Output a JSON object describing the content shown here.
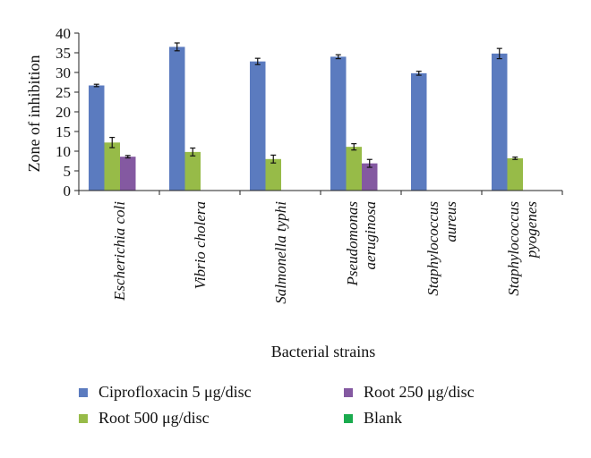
{
  "chart_data": {
    "type": "bar",
    "ylabel": "Zone of inhibition",
    "xlabel": "Bacterial strains",
    "ylim": [
      0,
      40
    ],
    "yticks": [
      "0",
      "5",
      "10",
      "15",
      "20",
      "25",
      "30",
      "35",
      "40"
    ],
    "categories": [
      [
        "Escherichia coli"
      ],
      [
        "Vibrio cholera"
      ],
      [
        "Salmonella typhi"
      ],
      [
        "Pseudomonas",
        "aeruginosa"
      ],
      [
        "Staphylococcus",
        "aureus"
      ],
      [
        "Staphylococcus",
        "pyogenes"
      ]
    ],
    "series": [
      {
        "name": "Ciprofloxacin 5 μg/disc",
        "color": "#5b7bbf",
        "values": [
          26.7,
          36.5,
          32.8,
          34.0,
          29.8,
          34.8
        ],
        "errors": [
          0.3,
          1.0,
          0.8,
          0.5,
          0.5,
          1.3
        ]
      },
      {
        "name": "Root 500 μg/disc",
        "color": "#97bb48",
        "values": [
          12.2,
          9.8,
          8.0,
          11.1,
          0,
          8.2
        ],
        "errors": [
          1.3,
          1.0,
          1.0,
          0.8,
          0,
          0.3
        ]
      },
      {
        "name": "Root 250 μg/disc",
        "color": "#8459a1",
        "values": [
          8.6,
          0,
          0,
          6.9,
          0,
          0
        ],
        "errors": [
          0.3,
          0,
          0,
          1.0,
          0,
          0
        ]
      },
      {
        "name": "Blank",
        "color": "#1aab4e",
        "values": [
          0,
          0,
          0,
          0,
          0,
          0
        ],
        "errors": [
          0,
          0,
          0,
          0,
          0,
          0
        ]
      }
    ],
    "grid": false,
    "legend_position": "bottom"
  }
}
